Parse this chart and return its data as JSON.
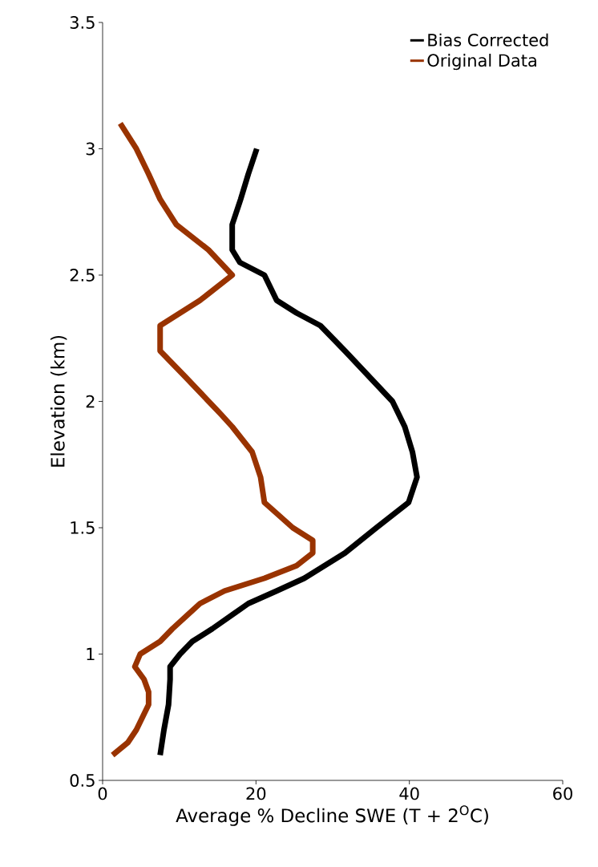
{
  "chart_data": {
    "type": "line",
    "xlabel": "Average % Decline SWE (T + 2$^{O}$C)",
    "ylabel": "Elevation (km)",
    "xlim": [
      0,
      60
    ],
    "xticks": [
      0,
      20,
      40,
      60
    ],
    "ylim": [
      0.5,
      3.5
    ],
    "yticks": [
      0.5,
      1,
      1.5,
      2,
      2.5,
      3,
      3.5
    ],
    "legend": "top right",
    "series": [
      {
        "name": "Bias Corrected",
        "color": "#000000",
        "x": [
          7.5,
          8.0,
          8.6,
          8.8,
          8.8,
          10.1,
          11.7,
          14.3,
          19.0,
          22.7,
          26.3,
          31.6,
          35.7,
          39.9,
          41.0,
          40.4,
          39.4,
          37.8,
          34.7,
          31.6,
          28.4,
          25.3,
          22.7,
          21.1,
          17.9,
          16.9,
          16.9,
          18.0,
          19.0,
          20.1
        ],
        "values": [
          0.6,
          0.7,
          0.8,
          0.9,
          0.95,
          1,
          1.05,
          1.1,
          1.2,
          1.25,
          1.3,
          1.4,
          1.5,
          1.6,
          1.7,
          1.8,
          1.9,
          2,
          2.1,
          2.2,
          2.3,
          2.35,
          2.4,
          2.5,
          2.55,
          2.6,
          2.7,
          2.8,
          2.9,
          3
        ]
      },
      {
        "name": "Original Data",
        "color": "#993300",
        "x": [
          1.3,
          3.3,
          4.4,
          6.0,
          6.0,
          5.4,
          4.2,
          4.9,
          7.5,
          9.1,
          12.7,
          15.9,
          21.1,
          25.3,
          27.4,
          27.4,
          24.8,
          21.1,
          20.6,
          19.5,
          16.9,
          15.4,
          10.7,
          7.5,
          7.5,
          12.7,
          16.9,
          13.8,
          9.6,
          7.5,
          6.0,
          4.4,
          2.3
        ],
        "values": [
          0.6,
          0.65,
          0.7,
          0.8,
          0.85,
          0.9,
          0.95,
          1,
          1.05,
          1.1,
          1.2,
          1.25,
          1.3,
          1.35,
          1.4,
          1.45,
          1.5,
          1.6,
          1.7,
          1.8,
          1.9,
          1.95,
          2.1,
          2.2,
          2.3,
          2.4,
          2.5,
          2.6,
          2.7,
          2.8,
          2.9,
          3,
          3.1
        ]
      }
    ]
  }
}
